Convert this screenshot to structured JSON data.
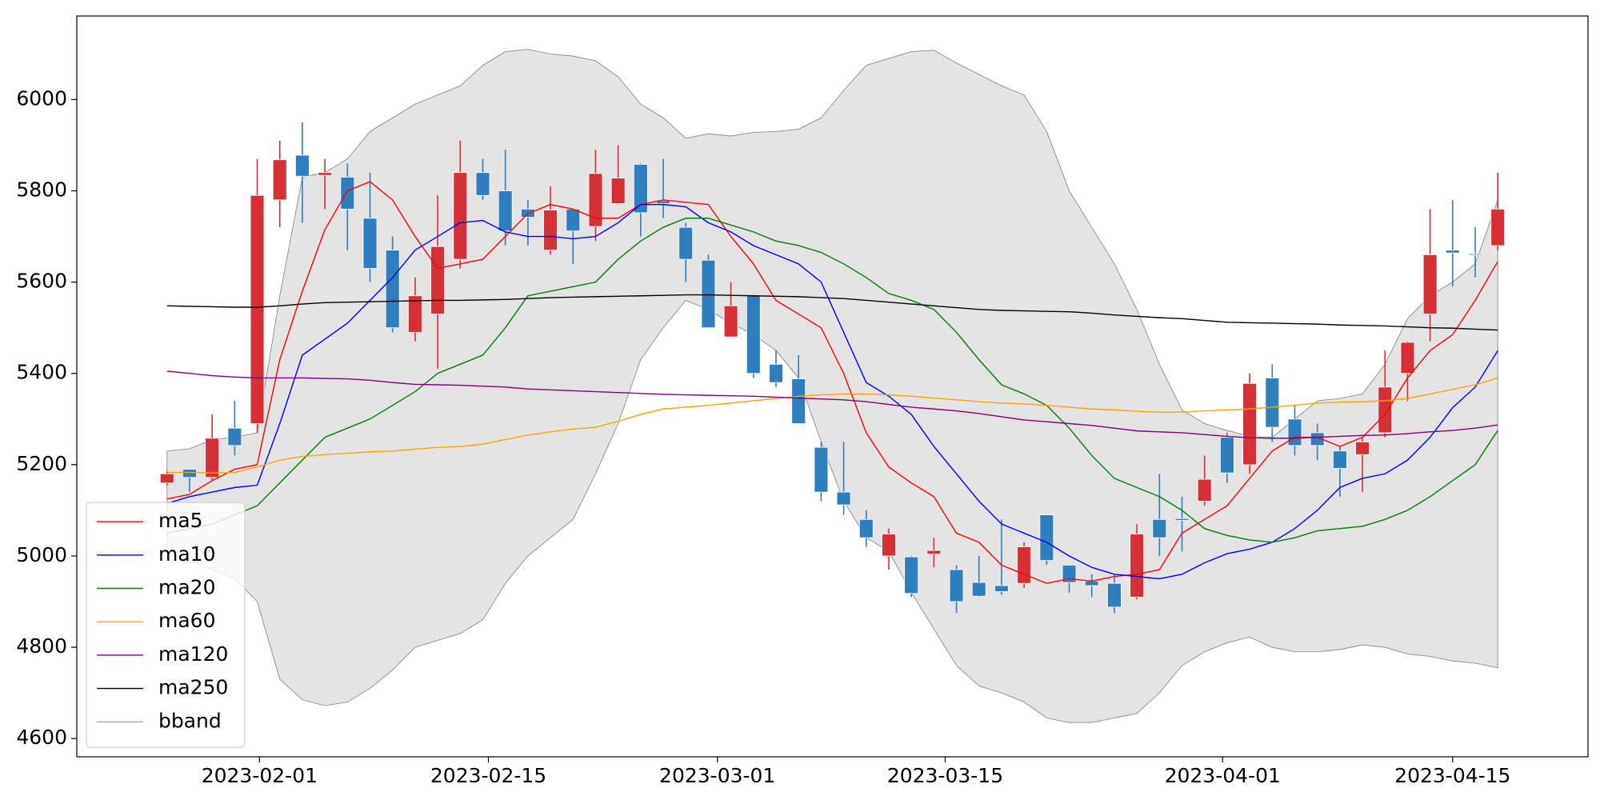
{
  "chart_data": {
    "type": "candlestick",
    "xlim": [
      -4,
      63
    ],
    "xticks": [
      {
        "value": 4.1,
        "label": "2023-02-01"
      },
      {
        "value": 14.25,
        "label": "2023-02-15"
      },
      {
        "value": 24.4,
        "label": "2023-03-01"
      },
      {
        "value": 34.5,
        "label": "2023-03-15"
      },
      {
        "value": 46.8,
        "label": "2023-04-01"
      },
      {
        "value": 57,
        "label": "2023-04-15"
      }
    ],
    "ylim": [
      4560,
      6183
    ],
    "yticks": [
      4600,
      4800,
      5000,
      5200,
      5400,
      5600,
      5800,
      6000
    ],
    "grid": false,
    "legend": "lower left",
    "up_color": "#d62f36",
    "down_color": "#2f7ebd",
    "open": [
      5160,
      5190,
      5172,
      5280,
      5290,
      5780,
      5878,
      5834,
      5830,
      5740,
      5670,
      5490,
      5530,
      5650,
      5840,
      5800,
      5760,
      5670,
      5760,
      5722,
      5772,
      5858,
      5778,
      5720,
      5648,
      5480,
      5570,
      5420,
      5388,
      5238,
      5140,
      5080,
      5000,
      4998,
      5004,
      4970,
      4942,
      4935,
      4940,
      5090,
      4980,
      4945,
      4940,
      4910,
      5080,
      5082,
      5120,
      5260,
      5200,
      5390,
      5300,
      5270,
      5230,
      5222,
      5270,
      5400,
      5530,
      5670,
      5662,
      5680
    ],
    "close": [
      5180,
      5172,
      5258,
      5242,
      5790,
      5868,
      5832,
      5840,
      5760,
      5630,
      5500,
      5570,
      5678,
      5840,
      5790,
      5712,
      5742,
      5758,
      5712,
      5838,
      5828,
      5752,
      5772,
      5650,
      5500,
      5548,
      5400,
      5380,
      5290,
      5140,
      5112,
      5040,
      5048,
      4918,
      5012,
      4900,
      4912,
      4922,
      5020,
      4990,
      4942,
      4935,
      4888,
      5048,
      5040,
      5078,
      5168,
      5182,
      5378,
      5282,
      5242,
      5242,
      5192,
      5250,
      5370,
      5468,
      5660,
      5664,
      5660,
      5760
    ],
    "high": [
      5185,
      5190,
      5310,
      5340,
      5870,
      5910,
      5950,
      5870,
      5860,
      5840,
      5700,
      5610,
      5790,
      5910,
      5870,
      5890,
      5780,
      5810,
      5760,
      5890,
      5900,
      5860,
      5870,
      5730,
      5660,
      5600,
      5570,
      5450,
      5440,
      5250,
      5250,
      5100,
      5060,
      5000,
      5040,
      4980,
      5000,
      5080,
      5030,
      5090,
      4980,
      4960,
      4960,
      5070,
      5180,
      5130,
      5220,
      5270,
      5400,
      5420,
      5330,
      5290,
      5240,
      5260,
      5450,
      5470,
      5760,
      5780,
      5720,
      5840
    ],
    "low": [
      5155,
      5140,
      5165,
      5220,
      5270,
      5720,
      5730,
      5760,
      5670,
      5600,
      5490,
      5470,
      5410,
      5630,
      5780,
      5680,
      5680,
      5660,
      5640,
      5690,
      5770,
      5700,
      5740,
      5600,
      5500,
      5480,
      5390,
      5370,
      5290,
      5120,
      5090,
      5020,
      4970,
      4910,
      4975,
      4875,
      4910,
      4915,
      4930,
      4980,
      4920,
      4910,
      4875,
      4905,
      5000,
      5010,
      5110,
      5160,
      5180,
      5250,
      5220,
      5210,
      5130,
      5140,
      5260,
      5340,
      5470,
      5590,
      5610,
      5670
    ],
    "series": [
      {
        "name": "ma5",
        "color": "#ff0000",
        "values": [
          5125,
          5135,
          5165,
          5190,
          5200,
          5430,
          5580,
          5715,
          5800,
          5820,
          5780,
          5700,
          5630,
          5640,
          5650,
          5700,
          5750,
          5770,
          5760,
          5740,
          5740,
          5770,
          5780,
          5775,
          5770,
          5700,
          5640,
          5560,
          5530,
          5500,
          5400,
          5270,
          5195,
          5160,
          5130,
          5050,
          5030,
          4980,
          4960,
          4940,
          4950,
          4945,
          4955,
          4960,
          4970,
          5050,
          5080,
          5110,
          5170,
          5230,
          5260,
          5260,
          5240,
          5260,
          5310,
          5390,
          5450,
          5485,
          5560,
          5645
        ]
      },
      {
        "name": "ma10",
        "color": "#0000ff",
        "values": [
          5115,
          5130,
          5140,
          5150,
          5155,
          5290,
          5440,
          5475,
          5510,
          5560,
          5610,
          5670,
          5700,
          5730,
          5735,
          5710,
          5700,
          5700,
          5695,
          5700,
          5730,
          5770,
          5770,
          5765,
          5730,
          5710,
          5680,
          5660,
          5640,
          5600,
          5490,
          5380,
          5350,
          5310,
          5240,
          5180,
          5120,
          5070,
          5050,
          5030,
          5000,
          4975,
          4960,
          4955,
          4950,
          4960,
          4985,
          5005,
          5015,
          5030,
          5060,
          5100,
          5150,
          5170,
          5180,
          5210,
          5260,
          5325,
          5370,
          5450
        ]
      },
      {
        "name": "ma20",
        "color": "#008000",
        "values": [
          5050,
          5060,
          5070,
          5090,
          5110,
          5160,
          5210,
          5260,
          5280,
          5300,
          5330,
          5360,
          5400,
          5420,
          5440,
          5500,
          5570,
          5580,
          5590,
          5600,
          5650,
          5690,
          5720,
          5740,
          5740,
          5725,
          5710,
          5690,
          5680,
          5665,
          5640,
          5610,
          5575,
          5560,
          5540,
          5490,
          5430,
          5375,
          5355,
          5330,
          5280,
          5220,
          5170,
          5150,
          5130,
          5100,
          5060,
          5045,
          5035,
          5030,
          5040,
          5055,
          5060,
          5065,
          5080,
          5100,
          5130,
          5165,
          5200,
          5275
        ]
      },
      {
        "name": "ma60",
        "color": "#ffa500",
        "values": [
          5183,
          5183,
          5182,
          5183,
          5195,
          5210,
          5218,
          5222,
          5225,
          5228,
          5230,
          5234,
          5238,
          5240,
          5245,
          5255,
          5265,
          5272,
          5278,
          5282,
          5295,
          5310,
          5322,
          5326,
          5330,
          5335,
          5340,
          5345,
          5350,
          5353,
          5355,
          5355,
          5353,
          5350,
          5346,
          5342,
          5338,
          5335,
          5333,
          5330,
          5326,
          5322,
          5320,
          5317,
          5315,
          5315,
          5318,
          5320,
          5322,
          5326,
          5330,
          5335,
          5337,
          5338,
          5340,
          5345,
          5355,
          5365,
          5375,
          5390
        ]
      },
      {
        "name": "ma120",
        "color": "#800080",
        "values": [
          5405,
          5400,
          5395,
          5392,
          5390,
          5390,
          5390,
          5389,
          5388,
          5385,
          5380,
          5376,
          5375,
          5374,
          5372,
          5370,
          5366,
          5364,
          5362,
          5360,
          5358,
          5356,
          5354,
          5353,
          5352,
          5351,
          5350,
          5348,
          5346,
          5344,
          5342,
          5338,
          5332,
          5326,
          5322,
          5318,
          5312,
          5305,
          5298,
          5294,
          5290,
          5286,
          5280,
          5274,
          5272,
          5270,
          5266,
          5262,
          5259,
          5258,
          5258,
          5260,
          5262,
          5264,
          5265,
          5268,
          5272,
          5275,
          5280,
          5287
        ]
      },
      {
        "name": "ma250",
        "color": "#000000",
        "values": [
          5548,
          5547,
          5546,
          5545,
          5545,
          5548,
          5552,
          5555,
          5556,
          5557,
          5558,
          5559,
          5560,
          5560,
          5561,
          5562,
          5564,
          5566,
          5567,
          5568,
          5569,
          5570,
          5571,
          5572,
          5572,
          5571,
          5570,
          5569,
          5568,
          5566,
          5564,
          5560,
          5556,
          5552,
          5548,
          5544,
          5540,
          5538,
          5537,
          5536,
          5535,
          5532,
          5528,
          5525,
          5522,
          5520,
          5516,
          5512,
          5511,
          5510,
          5509,
          5508,
          5506,
          5505,
          5504,
          5502,
          5500,
          5499,
          5497,
          5495
        ]
      }
    ],
    "bands": [
      {
        "name": "bband",
        "color": "#808080",
        "fill": "#e4e4e4",
        "upper": [
          5230,
          5235,
          5255,
          5260,
          5270,
          5570,
          5830,
          5840,
          5870,
          5930,
          5960,
          5990,
          6010,
          6030,
          6075,
          6105,
          6110,
          6100,
          6095,
          6085,
          6050,
          5990,
          5960,
          5915,
          5925,
          5920,
          5928,
          5930,
          5935,
          5960,
          6020,
          6075,
          6090,
          6105,
          6108,
          6080,
          6055,
          6030,
          6010,
          5930,
          5800,
          5720,
          5640,
          5540,
          5420,
          5320,
          5290,
          5275,
          5262,
          5260,
          5300,
          5340,
          5345,
          5355,
          5420,
          5520,
          5570,
          5600,
          5640,
          5780
        ],
        "lower": [
          5010,
          4990,
          4970,
          4950,
          4900,
          4730,
          4685,
          4672,
          4680,
          4710,
          4750,
          4800,
          4815,
          4830,
          4860,
          4940,
          5000,
          5040,
          5080,
          5180,
          5290,
          5430,
          5500,
          5560,
          5540,
          5510,
          5485,
          5450,
          5390,
          5250,
          5120,
          5040,
          5010,
          4920,
          4840,
          4760,
          4715,
          4700,
          4680,
          4645,
          4635,
          4635,
          4645,
          4655,
          4700,
          4760,
          4790,
          4810,
          4822,
          4800,
          4790,
          4790,
          4795,
          4805,
          4800,
          4785,
          4780,
          4770,
          4765,
          4755
        ]
      }
    ]
  }
}
